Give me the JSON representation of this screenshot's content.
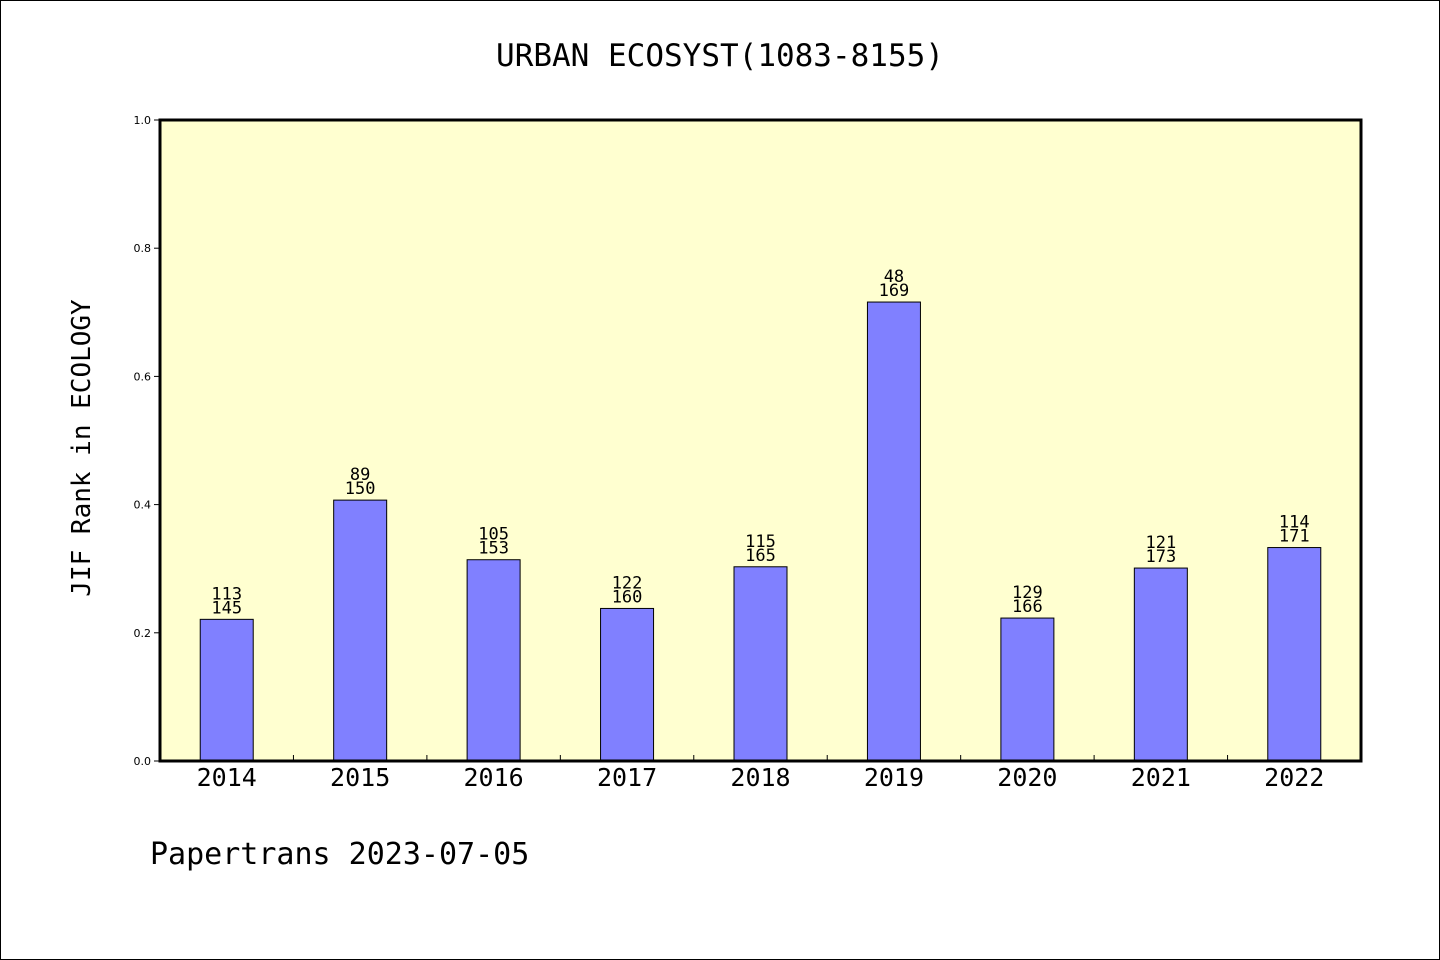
{
  "chart_data": {
    "type": "bar",
    "title": "URBAN ECOSYST(1083-8155)",
    "ylabel": "JIF Rank in ECOLOGY",
    "xlabel": "",
    "ylim": [
      0,
      1.0
    ],
    "yticks": [
      "0.0",
      "0.2",
      "0.4",
      "0.6",
      "0.8",
      "1.0"
    ],
    "categories": [
      "2014",
      "2015",
      "2016",
      "2017",
      "2018",
      "2019",
      "2020",
      "2021",
      "2022"
    ],
    "values": [
      0.221,
      0.407,
      0.314,
      0.238,
      0.303,
      0.716,
      0.223,
      0.301,
      0.333
    ],
    "bar_labels": [
      {
        "rank": "113",
        "total": "145"
      },
      {
        "rank": "89",
        "total": "150"
      },
      {
        "rank": "105",
        "total": "153"
      },
      {
        "rank": "122",
        "total": "160"
      },
      {
        "rank": "115",
        "total": "165"
      },
      {
        "rank": "48",
        "total": "169"
      },
      {
        "rank": "129",
        "total": "166"
      },
      {
        "rank": "121",
        "total": "173"
      },
      {
        "rank": "114",
        "total": "171"
      }
    ],
    "grid": false,
    "colors": {
      "bar": "#8080ff",
      "plot_background": "#ffffd0"
    }
  },
  "footer": "Papertrans 2023-07-05"
}
